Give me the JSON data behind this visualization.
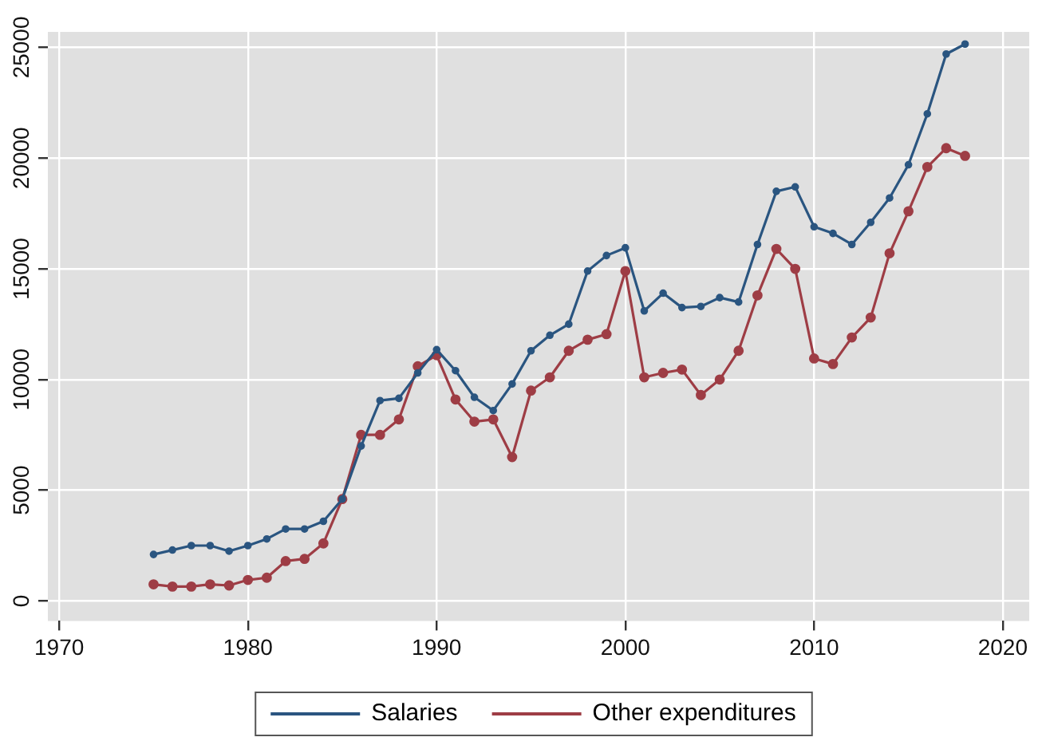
{
  "chart_data": {
    "type": "line",
    "x": [
      1975,
      1976,
      1977,
      1978,
      1979,
      1980,
      1981,
      1982,
      1983,
      1984,
      1985,
      1986,
      1987,
      1988,
      1989,
      1990,
      1991,
      1992,
      1993,
      1994,
      1995,
      1996,
      1997,
      1998,
      1999,
      2000,
      2001,
      2002,
      2003,
      2004,
      2005,
      2006,
      2007,
      2008,
      2009,
      2010,
      2011,
      2012,
      2013,
      2014,
      2015,
      2016,
      2017,
      2018
    ],
    "series": [
      {
        "name": "Salaries",
        "color": "#2a5580",
        "values": [
          2100,
          2300,
          2500,
          2500,
          2250,
          2500,
          2800,
          3250,
          3250,
          3600,
          4600,
          7000,
          9050,
          9150,
          10300,
          11350,
          10400,
          9200,
          8600,
          9800,
          11300,
          12000,
          12500,
          14900,
          15600,
          15950,
          13100,
          13900,
          13250,
          13300,
          13700,
          13500,
          16100,
          18500,
          18700,
          16900,
          16600,
          16100,
          17100,
          18200,
          19700,
          22000,
          24700,
          25150
        ]
      },
      {
        "name": "Other expenditures",
        "color": "#9e3d45",
        "values": [
          750,
          650,
          650,
          750,
          700,
          950,
          1050,
          1800,
          1900,
          2600,
          4600,
          7500,
          7500,
          8200,
          10600,
          11100,
          9100,
          8100,
          8200,
          6500,
          9500,
          10100,
          11300,
          11800,
          12050,
          14900,
          10100,
          10300,
          10450,
          9300,
          10000,
          11300,
          13800,
          15900,
          15000,
          10950,
          10700,
          11900,
          12800,
          15700,
          17600,
          19600,
          20450,
          20100
        ]
      }
    ],
    "xlim": [
      1969.4,
      2021.4
    ],
    "xticks": [
      1970,
      1980,
      1990,
      2000,
      2010,
      2020
    ],
    "ylim": [
      -900,
      25700
    ],
    "yticks": [
      0,
      5000,
      10000,
      15000,
      20000,
      25000
    ],
    "grid": true,
    "legend": "bottom",
    "marker": "circle",
    "line_style": "solid"
  }
}
